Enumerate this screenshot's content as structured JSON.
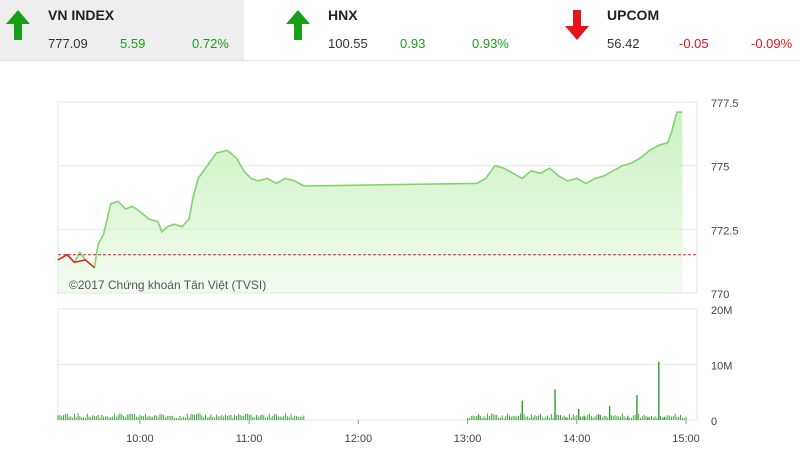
{
  "tickers": [
    {
      "name": "VN INDEX",
      "price": "777.09",
      "change": "5.59",
      "percent": "0.72%",
      "direction": "up",
      "active": true
    },
    {
      "name": "HNX",
      "price": "100.55",
      "change": "0.93",
      "percent": "0.93%",
      "direction": "up",
      "active": false
    },
    {
      "name": "UPCOM",
      "price": "56.42",
      "change": "-0.05",
      "percent": "-0.09%",
      "direction": "down",
      "active": false
    }
  ],
  "colors": {
    "up": "#1a9e1a",
    "down": "#e8141b",
    "area_fill": "#ccf1c2",
    "line": "#7fd46e",
    "reference_line": "#e8141b",
    "volume": "#2e9e2e"
  },
  "chart_data": [
    {
      "type": "area",
      "watermark": "©2017 Chứng khoán Tân Việt (TVSI)",
      "y_ticks": [
        "777.5",
        "775",
        "772.5",
        "770"
      ],
      "ylim": [
        770,
        777.5
      ],
      "xlim": [
        "09:15",
        "15:00"
      ],
      "reference_value": 771.5,
      "grid": true,
      "x": [
        "09:15",
        "09:20",
        "09:24",
        "09:27",
        "09:30",
        "09:35",
        "09:37",
        "09:40",
        "09:44",
        "09:48",
        "09:52",
        "09:56",
        "10:00",
        "10:05",
        "10:10",
        "10:12",
        "10:15",
        "10:19",
        "10:23",
        "10:27",
        "10:29",
        "10:32",
        "10:37",
        "10:42",
        "10:48",
        "10:53",
        "10:57",
        "11:01",
        "11:05",
        "11:10",
        "11:15",
        "11:20",
        "11:25",
        "11:30",
        "13:00",
        "13:05",
        "13:10",
        "13:15",
        "13:20",
        "13:25",
        "13:30",
        "13:35",
        "13:40",
        "13:45",
        "13:50",
        "13:55",
        "14:00",
        "14:05",
        "14:10",
        "14:15",
        "14:20",
        "14:25",
        "14:30",
        "14:35",
        "14:40",
        "14:45",
        "14:50",
        "14:52",
        "14:55",
        "14:58"
      ],
      "series": [
        {
          "values": [
            771.3,
            771.5,
            771.2,
            771.6,
            771.3,
            771.0,
            771.9,
            772.3,
            773.5,
            773.6,
            773.3,
            773.4,
            773.2,
            772.9,
            772.8,
            772.4,
            772.6,
            772.7,
            772.6,
            772.9,
            773.7,
            774.5,
            775.0,
            775.5,
            775.6,
            775.3,
            774.8,
            774.5,
            774.4,
            774.5,
            774.3,
            774.5,
            774.4,
            774.2,
            774.3,
            774.3,
            774.5,
            775.0,
            774.9,
            774.7,
            774.5,
            774.8,
            774.7,
            774.9,
            774.6,
            774.4,
            774.5,
            774.3,
            774.5,
            774.6,
            774.8,
            775.0,
            775.1,
            775.3,
            775.6,
            775.8,
            775.9,
            776.3,
            777.1,
            777.1
          ]
        }
      ]
    },
    {
      "type": "bar",
      "y_ticks": [
        "20M",
        "10M",
        "0"
      ],
      "ylim": [
        0,
        20000000
      ],
      "x_ticks": [
        "10:00",
        "11:00",
        "12:00",
        "13:00",
        "14:00",
        "15:00"
      ],
      "grid": true,
      "series": [
        {
          "values": [
            [
              13.1,
              1
            ],
            [
              13.5,
              3.5
            ],
            [
              13.8,
              5.5
            ],
            [
              13.9,
              0.5
            ],
            [
              14.02,
              2
            ],
            [
              14.07,
              0.8
            ],
            [
              14.2,
              1
            ],
            [
              14.3,
              2.5
            ],
            [
              14.47,
              0.6
            ],
            [
              14.55,
              4.5
            ],
            [
              14.65,
              0.5
            ],
            [
              14.75,
              10.5
            ],
            [
              14.8,
              0.5
            ]
          ]
        }
      ]
    }
  ]
}
